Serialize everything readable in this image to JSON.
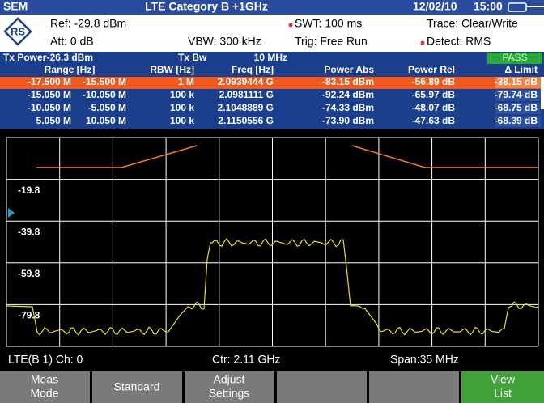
{
  "header": {
    "mode": "SEM",
    "title": "LTE Category B +1GHz",
    "date": "12/02/10",
    "time": "15:00"
  },
  "settings": {
    "ref": "Ref: -29.8 dBm",
    "att": "Att: 0 dB",
    "vbw": "VBW:  300 kHz",
    "swt": "SWT:  100 ms",
    "trig": "Trig:  Free Run",
    "trace": "Trace:  Clear/Write",
    "detect": "Detect:  RMS"
  },
  "summary": {
    "tx_power_label": "Tx Power",
    "tx_power": "-26.3 dBm",
    "tx_bw_label": "Tx Bw",
    "tx_bw": "10  MHz",
    "result": "PASS"
  },
  "table": {
    "columns": [
      "Range [Hz]",
      "RBW [Hz]",
      "Freq [Hz]",
      "Power Abs",
      "Power Rel",
      "Δ Limit"
    ],
    "rows": [
      [
        "-17.500 M",
        "-15.500 M",
        "1 M",
        "2.0939444 G",
        "-83.15 dBm",
        "-56.89 dB",
        "-38.15 dB"
      ],
      [
        "-15.050 M",
        "-10.050 M",
        "100 k",
        "2.0981111 G",
        "-92.24 dBm",
        "-65.97 dB",
        "-79.74 dB"
      ],
      [
        "-10.050 M",
        "-5.050 M",
        "100 k",
        "2.1048889 G",
        "-74.33 dBm",
        "-48.07 dB",
        "-68.75 dB"
      ],
      [
        "5.050 M",
        "10.050 M",
        "100 k",
        "2.1150556 G",
        "-73.90 dBm",
        "-47.63 dB",
        "-68.39 dB"
      ]
    ]
  },
  "plot": {
    "y_labels": [
      "-19.8",
      "-39.8",
      "-59.8",
      "-79.8"
    ]
  },
  "status": {
    "channel": "LTE(B 1) Ch:  0",
    "center": "Ctr:   2.11 GHz",
    "span": "Span:35 MHz"
  },
  "softkeys": {
    "meas_mode": [
      "Meas",
      "Mode"
    ],
    "standard": "Standard",
    "adjust_settings": [
      "Adjust",
      "Settings"
    ],
    "view_list": [
      "View",
      "List"
    ]
  }
}
